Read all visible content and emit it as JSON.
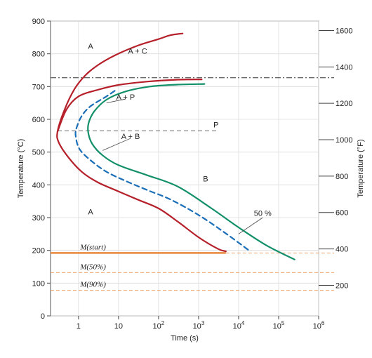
{
  "chart_data": {
    "type": "line",
    "title": "",
    "xlabel": "Time (s)",
    "ylabel": "Temperature (°C)",
    "ylabel_right": "Temperature (°F)",
    "x_scale": "log",
    "xlim": [
      0.2,
      1000000
    ],
    "ylim": [
      0,
      900
    ],
    "grid": true,
    "x_ticks": [
      {
        "value": 1,
        "base": "1",
        "exp": ""
      },
      {
        "value": 10,
        "base": "10",
        "exp": ""
      },
      {
        "value": 100,
        "base": "10",
        "exp": "2"
      },
      {
        "value": 1000,
        "base": "10",
        "exp": "3"
      },
      {
        "value": 10000,
        "base": "10",
        "exp": "4"
      },
      {
        "value": 100000,
        "base": "10",
        "exp": "5"
      },
      {
        "value": 1000000,
        "base": "10",
        "exp": "6"
      }
    ],
    "y_ticks": [
      0,
      100,
      200,
      300,
      400,
      500,
      600,
      700,
      800,
      900
    ],
    "y_right_ticks": [
      200,
      400,
      600,
      800,
      1000,
      1200,
      1400,
      1600
    ],
    "colors": {
      "start_curve": "#b5202a",
      "mid_curve": "#1a6fb8",
      "finish_curve": "#13906a",
      "martensite": "#e8883a",
      "reference": "#333333"
    },
    "series": [
      {
        "key": "start",
        "color": "#b5202a",
        "dashed": false,
        "points": [
          [
            400,
            862
          ],
          [
            200,
            857
          ],
          [
            100,
            845
          ],
          [
            30,
            825
          ],
          [
            8,
            795
          ],
          [
            3,
            765
          ],
          [
            1.5,
            735
          ],
          [
            0.8,
            693
          ],
          [
            0.45,
            630
          ],
          [
            0.3,
            563
          ],
          [
            0.32,
            530
          ],
          [
            0.55,
            485
          ],
          [
            1.2,
            440
          ],
          [
            3,
            408
          ],
          [
            10,
            380
          ],
          [
            30,
            355
          ],
          [
            100,
            328
          ],
          [
            300,
            288
          ],
          [
            1000,
            240
          ],
          [
            3000,
            205
          ],
          [
            4800,
            197
          ]
        ]
      },
      {
        "key": "start-upper",
        "color": "#b5202a",
        "dashed": false,
        "points": [
          [
            1200,
            722
          ],
          [
            300,
            721
          ],
          [
            50,
            715
          ],
          [
            10,
            705
          ],
          [
            3,
            690
          ],
          [
            1,
            670
          ],
          [
            0.5,
            630
          ],
          [
            0.3,
            563
          ]
        ]
      },
      {
        "key": "mid",
        "color": "#1a6fb8",
        "dashed": true,
        "points": [
          [
            8,
            687
          ],
          [
            5,
            670
          ],
          [
            2,
            640
          ],
          [
            1.2,
            610
          ],
          [
            0.9,
            575
          ],
          [
            0.85,
            550
          ],
          [
            1.05,
            510
          ],
          [
            2,
            475
          ],
          [
            5,
            440
          ],
          [
            15,
            412
          ],
          [
            50,
            385
          ],
          [
            200,
            355
          ],
          [
            1000,
            308
          ],
          [
            5000,
            250
          ],
          [
            20000,
            196
          ]
        ]
      },
      {
        "key": "finish",
        "color": "#13906a",
        "dashed": false,
        "points": [
          [
            1400,
            708
          ],
          [
            300,
            706
          ],
          [
            60,
            700
          ],
          [
            15,
            685
          ],
          [
            5,
            660
          ],
          [
            2.5,
            625
          ],
          [
            1.8,
            590
          ],
          [
            1.75,
            560
          ],
          [
            2.2,
            525
          ],
          [
            4,
            490
          ],
          [
            10,
            460
          ],
          [
            50,
            430
          ],
          [
            300,
            395
          ],
          [
            2000,
            330
          ],
          [
            10000,
            270
          ],
          [
            50000,
            215
          ],
          [
            250000,
            172
          ]
        ]
      }
    ],
    "reference_lines": [
      {
        "label": "",
        "y": 727,
        "style": "dashdot",
        "color": "#333333"
      },
      {
        "label": "P",
        "y": 565,
        "style": "dashed",
        "color": "#666666"
      }
    ],
    "martensite_lines": [
      {
        "label": "M(start)",
        "y": 192
      },
      {
        "label": "M(50%)",
        "y": 132
      },
      {
        "label": "M(90%)",
        "y": 78
      }
    ],
    "region_labels": [
      {
        "text": "A",
        "x": 2,
        "y": 815
      },
      {
        "text": "A + C",
        "x": 30,
        "y": 800
      },
      {
        "text": "A + P",
        "x": 15,
        "y": 660
      },
      {
        "text": "A + B",
        "x": 20,
        "y": 540
      },
      {
        "text": "B",
        "x": 1500,
        "y": 410
      },
      {
        "text": "A",
        "x": 2,
        "y": 310
      },
      {
        "text": "50 %",
        "x": 40000,
        "y": 305
      }
    ],
    "pointers": [
      {
        "from": [
          15,
          662
        ],
        "to": [
          5,
          650
        ]
      },
      {
        "from": [
          20,
          542
        ],
        "to": [
          4,
          505
        ]
      },
      {
        "from": [
          40000,
          300
        ],
        "to": [
          10000,
          250
        ]
      }
    ]
  }
}
